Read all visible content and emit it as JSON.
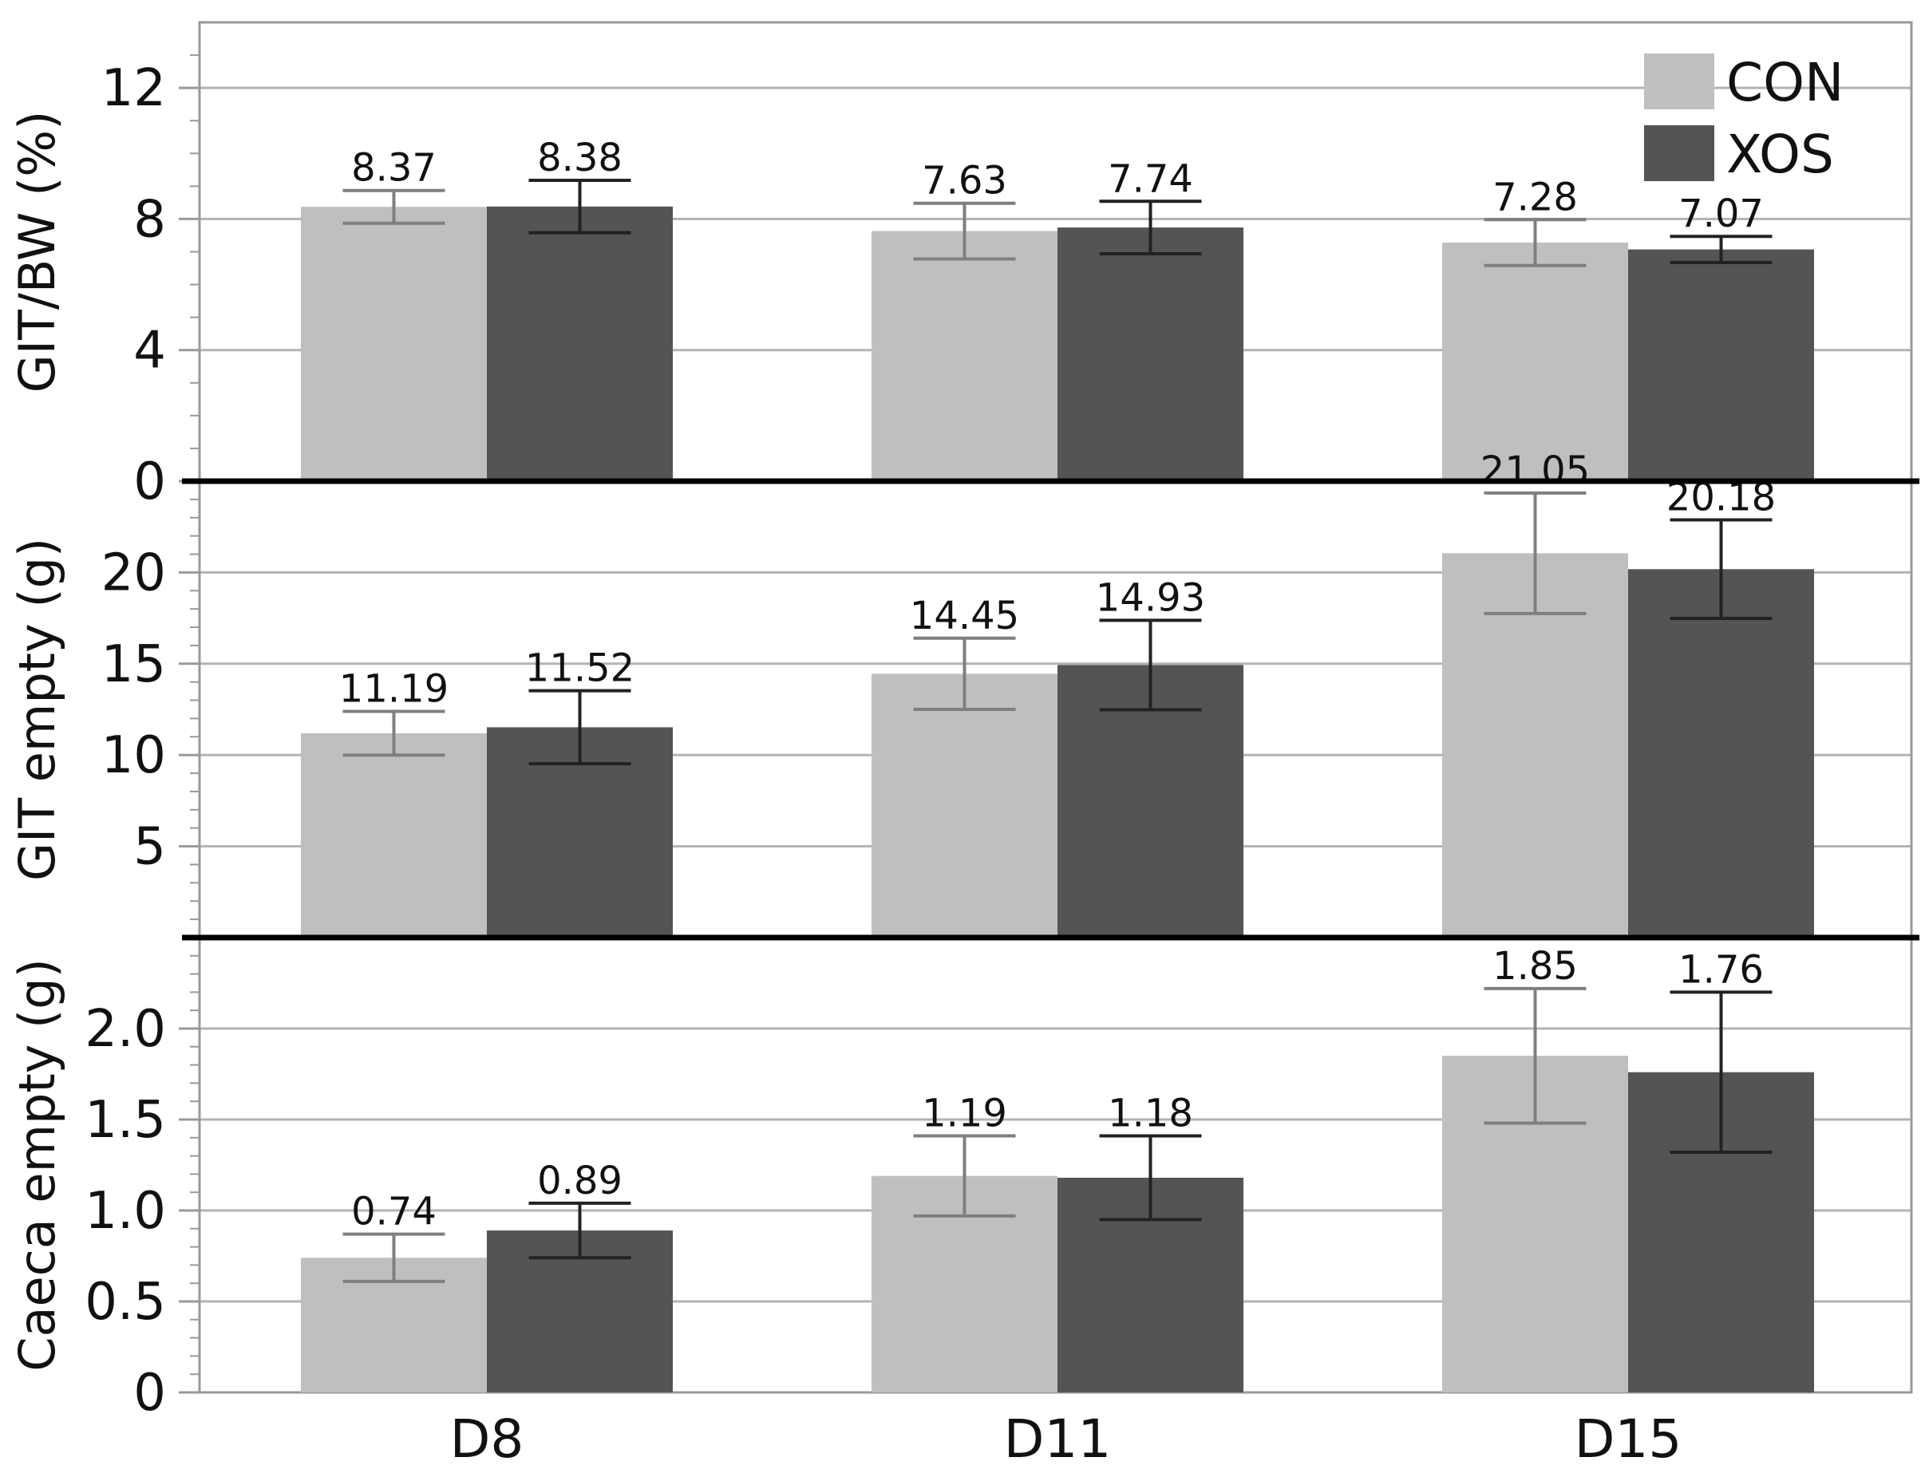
{
  "chart_data": {
    "type": "bar",
    "categories": [
      "D8",
      "D11",
      "D15"
    ],
    "series": [
      {
        "name": "CON",
        "color": "#bfbfbf",
        "errColor": "#7f7f7f"
      },
      {
        "name": "XOS",
        "color": "#545454",
        "errColor": "#222222"
      }
    ],
    "panels": [
      {
        "ylabel": "GIT/BW (%)",
        "ylim": [
          0,
          14
        ],
        "ticks": [
          0,
          4,
          8,
          12
        ],
        "tick_labels": [
          "0",
          "4",
          "8",
          "12"
        ],
        "minor_step": 1,
        "values": [
          [
            8.37,
            7.63,
            7.28
          ],
          [
            8.38,
            7.74,
            7.07
          ]
        ],
        "labels": [
          [
            "8.37",
            "7.63",
            "7.28"
          ],
          [
            "8.38",
            "7.74",
            "7.07"
          ]
        ],
        "errors": [
          [
            0.5,
            0.85,
            0.7
          ],
          [
            0.8,
            0.8,
            0.4
          ]
        ]
      },
      {
        "ylabel": "GIT empty (g)",
        "ylim": [
          0,
          25
        ],
        "ticks": [
          5,
          10,
          15,
          20
        ],
        "tick_labels": [
          "5",
          "10",
          "15",
          "20"
        ],
        "minor_step": 1,
        "values": [
          [
            11.19,
            14.45,
            21.05
          ],
          [
            11.52,
            14.93,
            20.18
          ]
        ],
        "labels": [
          [
            "11.19",
            "14.45",
            "21.05"
          ],
          [
            "11.52",
            "14.93",
            "20.18"
          ]
        ],
        "errors": [
          [
            1.2,
            1.95,
            3.3
          ],
          [
            2.0,
            2.45,
            2.7
          ]
        ]
      },
      {
        "ylabel": "Caeca empty (g)",
        "ylim": [
          0,
          2.5
        ],
        "ticks": [
          0,
          0.5,
          1.0,
          1.5,
          2.0
        ],
        "tick_labels": [
          "0",
          "0.5",
          "1.0",
          "1.5",
          "2.0"
        ],
        "minor_step": 0.1,
        "values": [
          [
            0.74,
            1.19,
            1.85
          ],
          [
            0.89,
            1.18,
            1.76
          ]
        ],
        "labels": [
          [
            "0.74",
            "1.19",
            "1.85"
          ],
          [
            "0.89",
            "1.18",
            "1.76"
          ]
        ],
        "errors": [
          [
            0.13,
            0.22,
            0.37
          ],
          [
            0.15,
            0.23,
            0.44
          ]
        ]
      }
    ],
    "legend": {
      "position": "top-right",
      "entries": [
        "CON",
        "XOS"
      ]
    }
  }
}
